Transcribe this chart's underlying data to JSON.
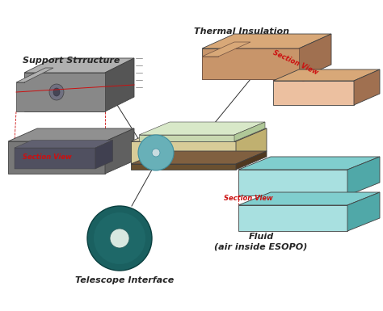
{
  "background_color": "#ffffff",
  "labels": {
    "support_structure": "Support Stтructure",
    "thermal_insulation": "Thermal Insulation",
    "telescope_interface": "Telescope Interface",
    "fluid": "Fluid\n(air inside ESOPO)",
    "section_view_support": "Section View",
    "section_view_thermal": "Section View",
    "section_view_fluid": "Section View"
  },
  "colors": {
    "support_gray": "#888888",
    "support_dark": "#555555",
    "support_light": "#b0b0b0",
    "support_section_fill": "#606070",
    "support_section_inner": "#404050",
    "thermal_main": "#c8956a",
    "thermal_side": "#a07050",
    "thermal_top": "#d8a878",
    "thermal_section_face": "#ecc0a0",
    "fluid_top": "#80cece",
    "fluid_front": "#a8e0e0",
    "fluid_side": "#50a8a8",
    "telescope_outer": "#1a6060",
    "telescope_ring": "#155050",
    "telescope_inner": "#d8e8e0",
    "center_beige_top": "#e8ddb8",
    "center_beige_front": "#d8cc98",
    "center_beige_side": "#c0b070",
    "center_teal": "#68b0b8",
    "center_teal_dark": "#4090a0",
    "center_brown_top": "#806040",
    "center_brown_front": "#6a5030",
    "center_brown_side": "#503820",
    "line_color": "#303030",
    "section_line_color": "#cc1010",
    "label_color": "#252525",
    "section_label_color": "#cc1010"
  },
  "fig_width": 4.74,
  "fig_height": 3.85,
  "dpi": 100
}
